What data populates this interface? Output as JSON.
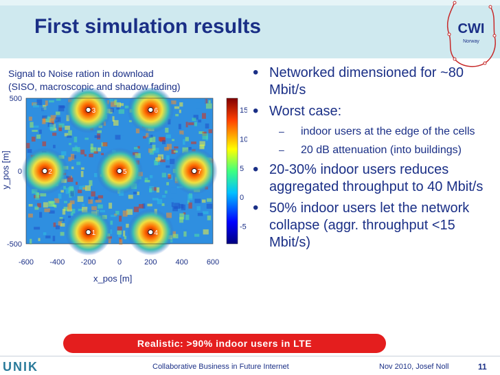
{
  "slide": {
    "title": "First simulation results",
    "logo_text": "CWI",
    "logo_subtext": "Norway"
  },
  "simulation": {
    "caption_line1": "Signal to Noise ration in download",
    "caption_line2": "(SISO, macroscopic and shadow fading)",
    "ylabel": "y_pos [m]",
    "xlabel": "x_pos [m]"
  },
  "chart_data": {
    "type": "heatmap",
    "title": "",
    "xlabel": "x_pos [m]",
    "ylabel": "y_pos [m]",
    "xlim": [
      -600,
      600
    ],
    "ylim": [
      -500,
      500
    ],
    "x_ticks": [
      "-600",
      "-400",
      "-200",
      "0",
      "200",
      "400",
      "600"
    ],
    "y_ticks": [
      "500",
      "0",
      "-500"
    ],
    "colorbar_ticks": [
      "15",
      "10",
      "5",
      "0",
      "-5"
    ],
    "colorbar_range": [
      -8,
      17
    ],
    "base_stations": [
      {
        "id": "1",
        "x": -200,
        "y": -420
      },
      {
        "id": "2",
        "x": -480,
        "y": 0
      },
      {
        "id": "3",
        "x": -200,
        "y": 420
      },
      {
        "id": "4",
        "x": 200,
        "y": -420
      },
      {
        "id": "5",
        "x": 0,
        "y": 0
      },
      {
        "id": "6",
        "x": 200,
        "y": 420
      },
      {
        "id": "7",
        "x": 480,
        "y": 0
      }
    ]
  },
  "bullets": [
    {
      "level": 1,
      "text": "Networked dimensioned for ~80 Mbit/s"
    },
    {
      "level": 1,
      "text": "Worst case:"
    },
    {
      "level": 2,
      "text": "indoor users at the edge of the cells"
    },
    {
      "level": 2,
      "text": "20 dB attenuation (into buildings)"
    },
    {
      "level": 1,
      "text": "20-30% indoor users reduces aggregated throughput to 40 Mbit/s"
    },
    {
      "level": 1,
      "text": "50% indoor users let the network collapse (aggr. throughput <15 Mbit/s)"
    }
  ],
  "banner": {
    "text": "Realistic: >90% indoor users in LTE"
  },
  "footer": {
    "logo": "UNIK",
    "center": "Collaborative Business in Future Internet",
    "right": "Nov 2010, Josef Noll",
    "page": "11"
  },
  "colors": {
    "title": "#1a2f86",
    "header_bg": "#cfe9ef",
    "banner_bg": "#e41e1e"
  }
}
